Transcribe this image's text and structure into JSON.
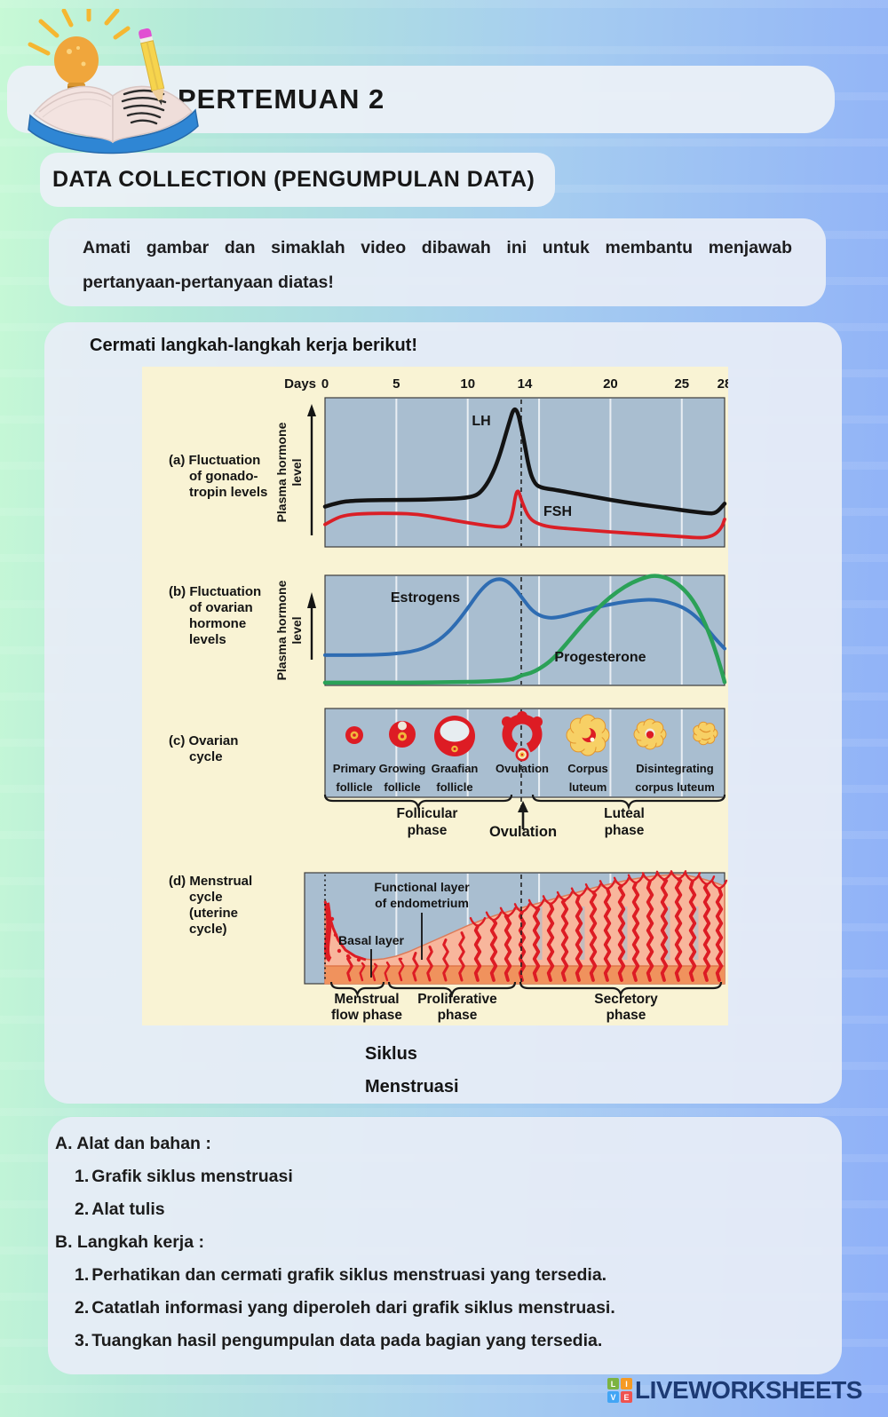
{
  "header": {
    "title": "PERTEMUAN 2",
    "subtitle": "DATA COLLECTION (PENGUMPULAN DATA)"
  },
  "intro": {
    "text": "Amati gambar dan simaklah video dibawah ini untuk membantu menjawab pertanyaan-pertanyaan diatas!"
  },
  "worksheet": {
    "heading": "Cermati langkah-langkah kerja berikut!",
    "caption_lines": [
      "Siklus",
      "Menstruasi"
    ]
  },
  "sections": {
    "a_title": "A. Alat dan bahan :",
    "a_items": [
      {
        "num": "1.",
        "text": "Grafik siklus menstruasi"
      },
      {
        "num": "2.",
        "text": "Alat tulis"
      }
    ],
    "b_title": "B. Langkah kerja :",
    "b_items": [
      {
        "num": "1.",
        "text": "Perhatikan dan cermati grafik siklus menstruasi yang tersedia."
      },
      {
        "num": "2.",
        "text": "Catatlah informasi yang diperoleh dari grafik siklus menstruasi."
      },
      {
        "num": "3.",
        "text": "Tuangkan hasil pengumpulan data pada bagian yang tersedia."
      }
    ]
  },
  "footer": {
    "brand": "LIVEWORKSHEETS",
    "logo_letters": [
      "L",
      "I",
      "V",
      "E"
    ],
    "logo_colors": [
      "#7cb342",
      "#f59a23",
      "#42a5f5",
      "#ef5350"
    ],
    "brand_color": "#1c3a74"
  },
  "colors": {
    "diagram_bg": "#f9f3d4",
    "plot_bg": "#a9bed0",
    "lh": "#131313",
    "fsh": "#da1f26",
    "estrogens": "#2e6cb2",
    "progesterone": "#2ba157",
    "follicle_red": "#dd1c24",
    "luteum_yellow": "#f7d065",
    "endometrium_pink": "#f8b69c",
    "basal_orange": "#f0925d"
  },
  "chart_data": {
    "type": "line",
    "title": "Siklus Menstruasi",
    "x_label": "Days",
    "x_ticks": [
      0,
      5,
      10,
      14,
      20,
      25,
      28
    ],
    "x_range": [
      0,
      28
    ],
    "gridline_days": [
      5,
      10,
      15,
      20,
      25
    ],
    "ovulation_day": 14,
    "ylabel": "Plasma hormone level",
    "panels": [
      {
        "id": "a",
        "caption_lines": [
          "(a) Fluctuation",
          "of gonado-",
          "tropin levels"
        ],
        "y_axis_lines": [
          "Plasma hormone",
          "level"
        ],
        "series": [
          {
            "name": "LH",
            "color": "#131313",
            "points": [
              [
                0,
                0.27
              ],
              [
                1,
                0.3
              ],
              [
                2,
                0.31
              ],
              [
                4,
                0.315
              ],
              [
                6,
                0.315
              ],
              [
                8,
                0.32
              ],
              [
                9.5,
                0.325
              ],
              [
                10.5,
                0.34
              ],
              [
                11,
                0.375
              ],
              [
                11.6,
                0.46
              ],
              [
                12.2,
                0.6
              ],
              [
                12.8,
                0.8
              ],
              [
                13.35,
                0.97
              ],
              [
                13.9,
                0.74
              ],
              [
                14.3,
                0.52
              ],
              [
                14.7,
                0.42
              ],
              [
                15.2,
                0.395
              ],
              [
                16,
                0.385
              ],
              [
                18,
                0.35
              ],
              [
                20,
                0.315
              ],
              [
                22,
                0.285
              ],
              [
                24,
                0.26
              ],
              [
                25.5,
                0.24
              ],
              [
                26.8,
                0.225
              ],
              [
                27.4,
                0.225
              ],
              [
                28,
                0.29
              ]
            ]
          },
          {
            "name": "FSH",
            "color": "#da1f26",
            "points": [
              [
                0,
                0.15
              ],
              [
                0.7,
                0.19
              ],
              [
                1.5,
                0.215
              ],
              [
                3,
                0.225
              ],
              [
                5,
                0.225
              ],
              [
                6.5,
                0.22
              ],
              [
                8,
                0.195
              ],
              [
                9.5,
                0.17
              ],
              [
                10.8,
                0.15
              ],
              [
                12,
                0.135
              ],
              [
                12.7,
                0.133
              ],
              [
                13.1,
                0.19
              ],
              [
                13.45,
                0.41
              ],
              [
                13.8,
                0.3
              ],
              [
                14.3,
                0.19
              ],
              [
                15,
                0.15
              ],
              [
                16,
                0.13
              ],
              [
                18,
                0.115
              ],
              [
                20,
                0.1
              ],
              [
                22,
                0.088
              ],
              [
                24,
                0.075
              ],
              [
                25.5,
                0.065
              ],
              [
                26.6,
                0.06
              ],
              [
                27.3,
                0.08
              ],
              [
                27.8,
                0.13
              ],
              [
                28,
                0.185
              ]
            ]
          }
        ]
      },
      {
        "id": "b",
        "caption_lines": [
          "(b) Fluctuation",
          "of ovarian",
          "hormone",
          "levels"
        ],
        "y_axis_lines": [
          "Plasma hormone",
          "level"
        ],
        "series": [
          {
            "name": "Estrogens",
            "color": "#2e6cb2",
            "points": [
              [
                0,
                0.275
              ],
              [
                2,
                0.275
              ],
              [
                4,
                0.28
              ],
              [
                5,
                0.29
              ],
              [
                6,
                0.305
              ],
              [
                7,
                0.34
              ],
              [
                8,
                0.41
              ],
              [
                9,
                0.53
              ],
              [
                10,
                0.7
              ],
              [
                10.8,
                0.85
              ],
              [
                11.5,
                0.94
              ],
              [
                12.1,
                0.97
              ],
              [
                12.7,
                0.955
              ],
              [
                13.3,
                0.885
              ],
              [
                13.9,
                0.78
              ],
              [
                14.5,
                0.68
              ],
              [
                15.1,
                0.63
              ],
              [
                15.8,
                0.61
              ],
              [
                16.6,
                0.625
              ],
              [
                17.6,
                0.66
              ],
              [
                19,
                0.71
              ],
              [
                20.5,
                0.75
              ],
              [
                22,
                0.775
              ],
              [
                23,
                0.78
              ],
              [
                24,
                0.76
              ],
              [
                25,
                0.715
              ],
              [
                25.8,
                0.65
              ],
              [
                26.6,
                0.545
              ],
              [
                27.3,
                0.43
              ],
              [
                28,
                0.335
              ]
            ]
          },
          {
            "name": "Progesterone",
            "color": "#2ba157",
            "points": [
              [
                0,
                0.025
              ],
              [
                3,
                0.025
              ],
              [
                6,
                0.025
              ],
              [
                9,
                0.03
              ],
              [
                11,
                0.035
              ],
              [
                12.5,
                0.045
              ],
              [
                13.3,
                0.06
              ],
              [
                13.8,
                0.095
              ],
              [
                14.4,
                0.11
              ],
              [
                15,
                0.15
              ],
              [
                15.8,
                0.22
              ],
              [
                16.6,
                0.33
              ],
              [
                17.5,
                0.47
              ],
              [
                18.5,
                0.62
              ],
              [
                19.5,
                0.75
              ],
              [
                20.5,
                0.855
              ],
              [
                21.5,
                0.935
              ],
              [
                22.5,
                0.985
              ],
              [
                23.2,
                1.0
              ],
              [
                24,
                0.975
              ],
              [
                24.8,
                0.915
              ],
              [
                25.6,
                0.81
              ],
              [
                26.3,
                0.66
              ],
              [
                27,
                0.45
              ],
              [
                27.5,
                0.26
              ],
              [
                27.9,
                0.08
              ],
              [
                28,
                0.03
              ]
            ]
          }
        ]
      },
      {
        "id": "c",
        "caption_lines": [
          "(c) Ovarian",
          "cycle"
        ],
        "stages": [
          {
            "l1": "Primary",
            "l2": "follicle"
          },
          {
            "l1": "Growing",
            "l2": "follicle"
          },
          {
            "l1": "Graafian",
            "l2": "follicle"
          },
          {
            "l1": "Ovulation",
            "l2": ""
          },
          {
            "l1": "Corpus",
            "l2": "luteum"
          },
          {
            "l1": "Disintegrating",
            "l2": "corpus luteum"
          }
        ],
        "phase_labels": [
          {
            "l1": "Follicular",
            "l2": "phase"
          },
          {
            "l1": "Ovulation",
            "l2": ""
          },
          {
            "l1": "Luteal",
            "l2": "phase"
          }
        ]
      },
      {
        "id": "d",
        "caption_lines": [
          "(d) Menstrual",
          "cycle",
          "(uterine",
          "cycle)"
        ],
        "annotations": [
          {
            "l1": "Functional layer",
            "l2": "of endometrium"
          },
          {
            "l1": "Basal layer",
            "l2": ""
          }
        ],
        "phase_labels": [
          {
            "l1": "Menstrual",
            "l2": "flow phase"
          },
          {
            "l1": "Proliferative",
            "l2": "phase"
          },
          {
            "l1": "Secretory",
            "l2": "phase"
          }
        ]
      }
    ]
  }
}
